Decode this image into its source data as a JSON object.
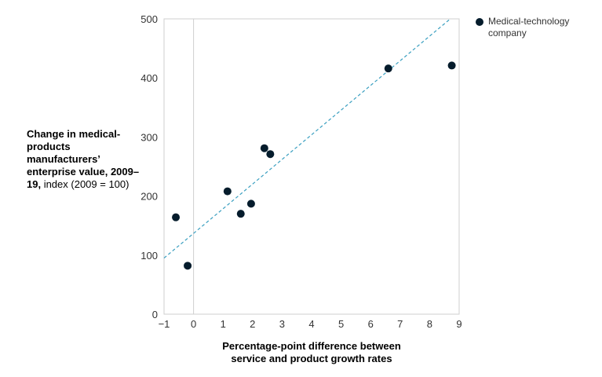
{
  "chart_data": {
    "type": "scatter",
    "title": "",
    "ylabel_bold": "Change in medical-products manufacturers’ enterprise value, 2009–19,",
    "ylabel_rest": " index (2009 = 100)",
    "xlabel": "Percentage-point difference between service and product growth rates",
    "xlim": [
      -1,
      9
    ],
    "ylim": [
      0,
      500
    ],
    "xticks": [
      "−1",
      "0",
      "1",
      "2",
      "3",
      "4",
      "5",
      "6",
      "7",
      "8",
      "9"
    ],
    "xtick_values": [
      -1,
      0,
      1,
      2,
      3,
      4,
      5,
      6,
      7,
      8,
      9
    ],
    "yticks": [
      "0",
      "100",
      "200",
      "300",
      "400",
      "500"
    ],
    "ytick_values": [
      0,
      100,
      200,
      300,
      400,
      500
    ],
    "series": [
      {
        "name": "Medical-technology company",
        "color": "#051c2c",
        "points": [
          {
            "x": -0.6,
            "y": 164
          },
          {
            "x": -0.2,
            "y": 82
          },
          {
            "x": 1.15,
            "y": 208
          },
          {
            "x": 1.6,
            "y": 170
          },
          {
            "x": 1.95,
            "y": 187
          },
          {
            "x": 2.4,
            "y": 281
          },
          {
            "x": 2.6,
            "y": 271
          },
          {
            "x": 6.6,
            "y": 416
          },
          {
            "x": 8.75,
            "y": 421
          }
        ]
      }
    ],
    "trendline": {
      "color": "#3a9fc0",
      "style": "dashed",
      "start": {
        "x": -1,
        "y": 95
      },
      "end": {
        "x": 8.7,
        "y": 500
      }
    },
    "reference_line_x": 0,
    "legend_position": "top-right",
    "grid": false
  }
}
